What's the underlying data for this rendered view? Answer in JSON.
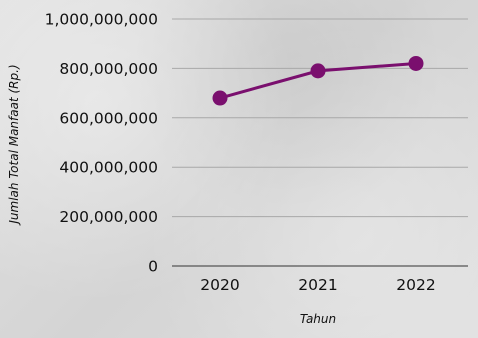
{
  "chart_data": {
    "type": "line",
    "categories": [
      "2020",
      "2021",
      "2022"
    ],
    "series": [
      {
        "values": [
          680000000,
          790000000,
          820000000
        ]
      }
    ],
    "title": "",
    "xlabel": "Tahun",
    "ylabel": "Jumlah Total Manfaat (Rp.)",
    "ylim": [
      0,
      1000000000
    ],
    "yticks": [
      0,
      200000000,
      400000000,
      600000000,
      800000000,
      1000000000
    ],
    "ytick_labels": [
      "0",
      "200,000,000",
      "400,000,000",
      "600,000,000",
      "800,000,000",
      "1,000,000,000"
    ],
    "grid": true,
    "legend": "none",
    "colors": {
      "line": "#7a0f6e",
      "grid": "#a8a8a8"
    }
  }
}
